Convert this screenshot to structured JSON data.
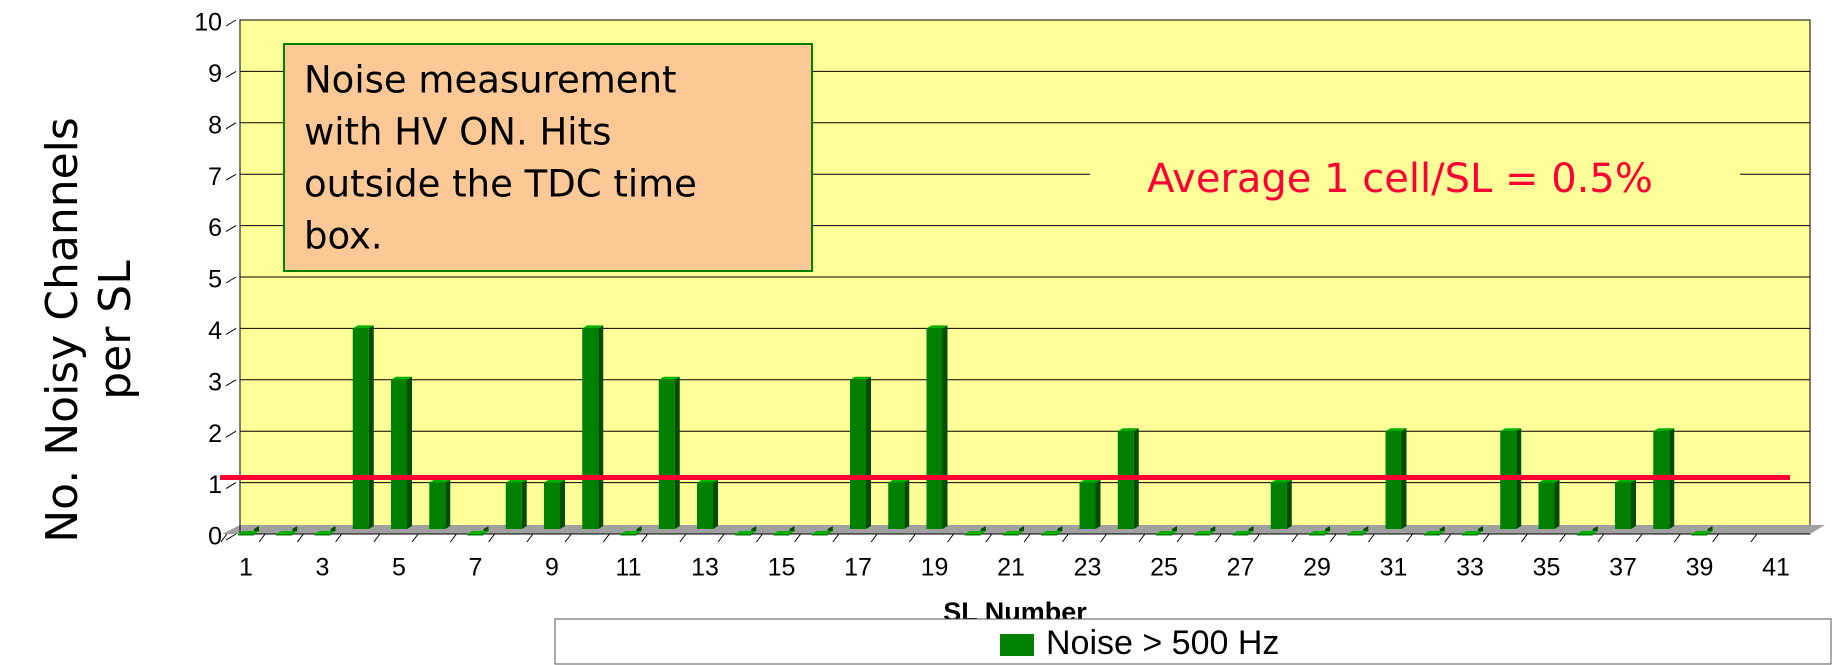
{
  "chart_data": {
    "type": "bar",
    "y_label_lines": [
      "No. Noisy Channels",
      "per SL"
    ],
    "x_label": "SL Number",
    "categories": [
      1,
      null,
      3,
      null,
      5,
      null,
      7,
      null,
      9,
      null,
      11,
      null,
      13,
      null,
      15,
      null,
      17,
      null,
      19,
      null,
      21,
      null,
      23,
      null,
      25,
      null,
      27,
      null,
      29,
      null,
      31,
      null,
      33,
      null,
      35,
      null,
      37,
      null,
      39,
      null,
      41
    ],
    "series": [
      {
        "name": "Noise > 500 Hz",
        "color": "#008000",
        "values": [
          0,
          0,
          0,
          4,
          3,
          1,
          0,
          1,
          1,
          4,
          0,
          3,
          1,
          0,
          0,
          0,
          3,
          1,
          4,
          0,
          0,
          0,
          1,
          2,
          0,
          0,
          0,
          1,
          0,
          0,
          2,
          0,
          0,
          2,
          1,
          0,
          1,
          2,
          0,
          null,
          null
        ]
      }
    ],
    "ylim": [
      0,
      10
    ],
    "yticks": [
      0,
      1,
      2,
      3,
      4,
      5,
      6,
      7,
      8,
      9,
      10
    ],
    "grid": true,
    "average_line": {
      "value": 1.1,
      "color": "#ff0033",
      "label": "Average 1 cell/SL = 0.5%"
    },
    "annotation_box": [
      "Noise measurement",
      "with HV ON. Hits",
      "outside the TDC time",
      "box."
    ]
  }
}
